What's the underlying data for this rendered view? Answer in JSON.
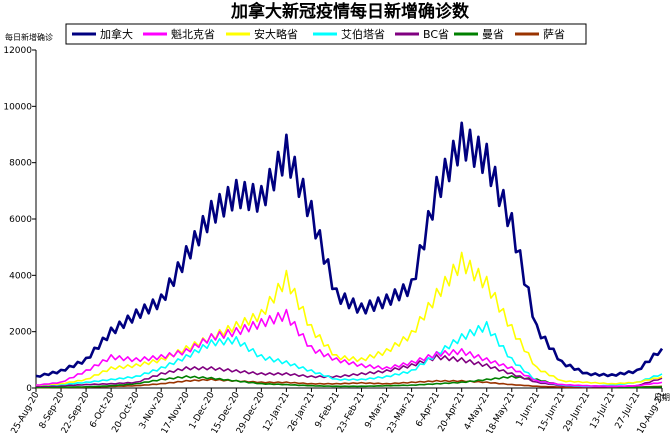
{
  "chart_data": {
    "type": "line",
    "title": "加拿大新冠疫情每日新增确诊数",
    "ylabel": "每日新增确诊",
    "xlabel": "日期",
    "ylim": [
      0,
      12000
    ],
    "yticks": [
      0,
      2000,
      4000,
      6000,
      8000,
      10000,
      12000
    ],
    "grid": false,
    "legend_position": "top",
    "categories": [
      "25-Aug-20",
      "8-Sep-20",
      "22-Sep-20",
      "6-Oct-20",
      "20-Oct-20",
      "3-Nov-20",
      "17-Nov-20",
      "1-Dec-20",
      "15-Dec-20",
      "29-Dec-20",
      "12-Jan-21",
      "26-Jan-21",
      "9-Feb-21",
      "23-Feb-21",
      "9-Mar-21",
      "23-Mar-21",
      "6-Apr-21",
      "20-Apr-21",
      "4-May-21",
      "18-May-21",
      "1-Jun-21",
      "15-Jun-21",
      "29-Jun-21",
      "13-Jul-21",
      "27-Jul-21",
      "10-Aug-21"
    ],
    "series": [
      {
        "name": "加拿大",
        "color": "#000080",
        "width": 2.6,
        "values": [
          400,
          600,
          1000,
          2000,
          2600,
          3100,
          4700,
          6200,
          6900,
          6700,
          8400,
          6200,
          3300,
          2800,
          3100,
          3600,
          7000,
          8800,
          8100,
          5800,
          2100,
          900,
          500,
          450,
          600,
          1400
        ]
      },
      {
        "name": "魁北克省",
        "color": "#ff00ff",
        "width": 1.6,
        "values": [
          100,
          200,
          600,
          1100,
          1000,
          1100,
          1300,
          1800,
          2000,
          2300,
          2600,
          1400,
          1000,
          800,
          700,
          900,
          1200,
          1300,
          1000,
          700,
          250,
          120,
          80,
          60,
          80,
          200
        ]
      },
      {
        "name": "安大略省",
        "color": "#ffff00",
        "width": 1.6,
        "values": [
          100,
          150,
          300,
          700,
          800,
          1000,
          1400,
          1800,
          2200,
          2600,
          3900,
          2100,
          1100,
          1000,
          1300,
          1900,
          3300,
          4500,
          3700,
          2100,
          700,
          250,
          200,
          150,
          200,
          400
        ]
      },
      {
        "name": "艾伯塔省",
        "color": "#00ffff",
        "width": 1.6,
        "values": [
          100,
          120,
          200,
          300,
          400,
          700,
          1100,
          1600,
          1700,
          1100,
          900,
          600,
          300,
          300,
          400,
          600,
          1200,
          1800,
          2200,
          1000,
          250,
          100,
          60,
          100,
          200,
          500
        ]
      },
      {
        "name": "BC省",
        "color": "#800080",
        "width": 1.6,
        "values": [
          60,
          80,
          120,
          150,
          200,
          500,
          700,
          700,
          600,
          500,
          500,
          400,
          400,
          500,
          600,
          800,
          1100,
          1000,
          800,
          500,
          200,
          80,
          40,
          40,
          80,
          350
        ]
      },
      {
        "name": "曼省",
        "color": "#008000",
        "width": 1.6,
        "values": [
          20,
          30,
          40,
          80,
          150,
          300,
          400,
          350,
          250,
          150,
          120,
          80,
          60,
          60,
          80,
          100,
          150,
          200,
          300,
          400,
          300,
          100,
          40,
          20,
          20,
          40
        ]
      },
      {
        "name": "萨省",
        "color": "#993300",
        "width": 1.6,
        "values": [
          10,
          20,
          30,
          60,
          80,
          150,
          250,
          300,
          250,
          200,
          200,
          150,
          150,
          180,
          150,
          200,
          250,
          250,
          200,
          120,
          60,
          30,
          20,
          20,
          30,
          60
        ]
      }
    ]
  }
}
